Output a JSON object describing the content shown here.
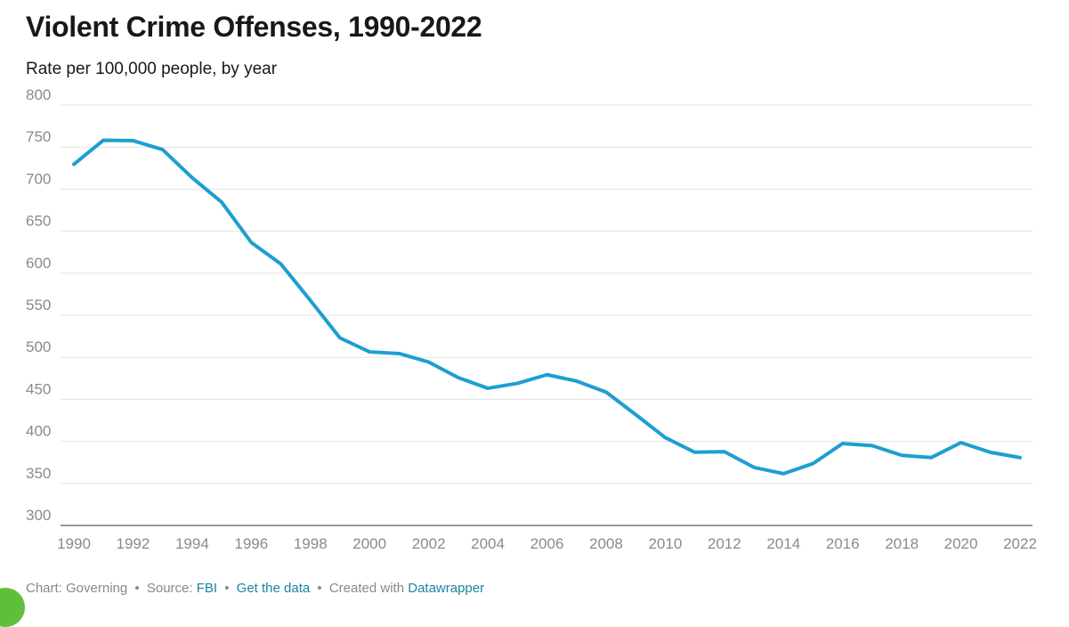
{
  "chart_data": {
    "type": "line",
    "title": "Violent Crime Offenses, 1990-2022",
    "subtitle": "Rate per 100,000 people, by year",
    "xlabel": "",
    "ylabel": "",
    "xlim": [
      1990,
      2022
    ],
    "ylim": [
      300,
      800
    ],
    "x_ticks": [
      "1990",
      "1992",
      "1994",
      "1996",
      "1998",
      "2000",
      "2002",
      "2004",
      "2006",
      "2008",
      "2010",
      "2012",
      "2014",
      "2016",
      "2018",
      "2020",
      "2022"
    ],
    "y_ticks": [
      "300",
      "350",
      "400",
      "450",
      "500",
      "550",
      "600",
      "650",
      "700",
      "750",
      "800"
    ],
    "grid": true,
    "line_color": "#1d9fd0",
    "x": [
      1990,
      1991,
      1992,
      1993,
      1994,
      1995,
      1996,
      1997,
      1998,
      1999,
      2000,
      2001,
      2002,
      2003,
      2004,
      2005,
      2006,
      2007,
      2008,
      2009,
      2010,
      2011,
      2012,
      2013,
      2014,
      2015,
      2016,
      2017,
      2018,
      2019,
      2020,
      2021,
      2022
    ],
    "series": [
      {
        "values": [
          729.6,
          758.2,
          757.7,
          747.1,
          713.6,
          684.5,
          636.6,
          611.0,
          567.6,
          523.0,
          506.5,
          504.5,
          494.4,
          475.8,
          463.2,
          469.0,
          479.3,
          471.8,
          458.6,
          431.9,
          404.5,
          387.1,
          387.8,
          369.1,
          361.6,
          373.7,
          397.5,
          394.9,
          383.4,
          380.8,
          398.5,
          387.0,
          380.7
        ]
      }
    ]
  },
  "footer": {
    "chart_label": "Chart: Governing",
    "sep1": "•",
    "source_label": "Source:",
    "source_link": "FBI",
    "sep2": "•",
    "data_link": "Get the data",
    "sep3": "•",
    "created_label": "Created with",
    "tool_link": "Datawrapper"
  }
}
